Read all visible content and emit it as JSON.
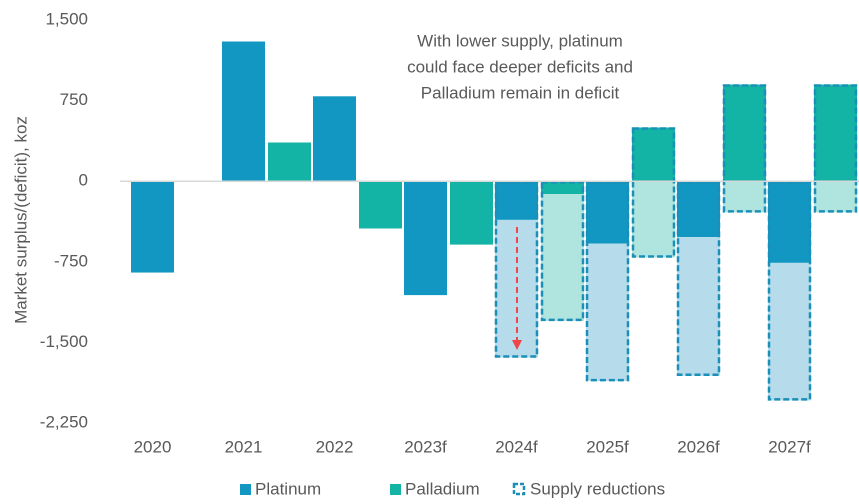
{
  "chart_data": {
    "type": "bar",
    "y_label": "Market surplus/(deficit), koz",
    "annotation": [
      "With lower supply, platinum",
      "could face deeper deficits and",
      "Palladium remain in deficit"
    ],
    "categories": [
      "2020",
      "2021",
      "2022",
      "2023f",
      "2024f",
      "2025f",
      "2026f",
      "2027f"
    ],
    "series": [
      {
        "name": "Platinum",
        "color": "#1297c2",
        "reduced_color": "#b6dbea",
        "values": [
          -850,
          1300,
          790,
          -1060,
          -360,
          -580,
          -520,
          -760
        ]
      },
      {
        "name": "Palladium",
        "color": "#13b3a5",
        "reduced_color": "#b0e4df",
        "values": [
          null,
          360,
          -440,
          -590,
          -120,
          500,
          900,
          900
        ]
      }
    ],
    "reductions": {
      "name": "Supply reductions",
      "color": "#1a8fb8",
      "platinum": [
        null,
        null,
        null,
        null,
        -1640,
        -1860,
        -1810,
        -2040
      ],
      "palladium": [
        null,
        null,
        null,
        null,
        -1300,
        -710,
        -290,
        -290
      ]
    },
    "ylim": [
      -2250,
      1500
    ],
    "yticks": [
      {
        "value": 1500,
        "label": "1,500"
      },
      750,
      0,
      -750,
      {
        "value": -1500,
        "label": "-1,500"
      },
      {
        "value": -2250,
        "label": "-2,250"
      }
    ]
  }
}
